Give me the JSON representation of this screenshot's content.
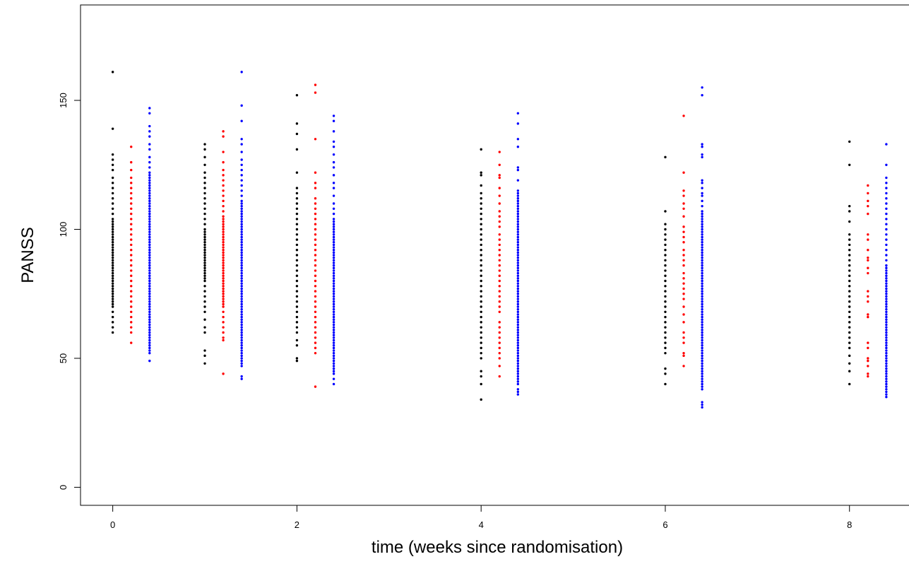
{
  "chart_data": {
    "type": "scatter",
    "title": "",
    "xlabel": "time (weeks since randomisation)",
    "ylabel": "PANSS",
    "xlim": [
      -0.35,
      8.7
    ],
    "ylim": [
      -7,
      187
    ],
    "x_ticks": [
      0,
      2,
      4,
      6,
      8
    ],
    "y_ticks": [
      0,
      50,
      100,
      150
    ],
    "grid": false,
    "legend": "none",
    "series": [
      {
        "color": "#000000",
        "points": [
          {
            "x": 0,
            "y": [
              161,
              139,
              129,
              127,
              125,
              123,
              120,
              118,
              116,
              114,
              112,
              110,
              108,
              106,
              104,
              103,
              102,
              101,
              100,
              99,
              98,
              97,
              96,
              95,
              94,
              93,
              92,
              91,
              90,
              89,
              88,
              87,
              86,
              85,
              84,
              83,
              82,
              81,
              80,
              79,
              78,
              77,
              76,
              75,
              74,
              73,
              72,
              71,
              70,
              68,
              66,
              64,
              62,
              60
            ]
          },
          {
            "x": 1,
            "y": [
              133,
              131,
              128,
              125,
              122,
              120,
              118,
              116,
              114,
              112,
              110,
              108,
              106,
              104,
              102,
              100,
              99,
              98,
              97,
              96,
              95,
              94,
              93,
              92,
              91,
              90,
              89,
              88,
              87,
              86,
              85,
              84,
              83,
              82,
              81,
              80,
              78,
              76,
              74,
              72,
              70,
              68,
              65,
              62,
              60,
              53,
              51,
              48
            ]
          },
          {
            "x": 2,
            "y": [
              152,
              141,
              137,
              131,
              122,
              116,
              114,
              112,
              110,
              108,
              106,
              104,
              102,
              100,
              98,
              96,
              94,
              92,
              90,
              88,
              86,
              84,
              82,
              80,
              78,
              76,
              74,
              72,
              70,
              68,
              66,
              64,
              62,
              60,
              57,
              55,
              50,
              49
            ]
          },
          {
            "x": 4,
            "y": [
              131,
              122,
              121,
              117,
              114,
              112,
              110,
              108,
              106,
              104,
              102,
              100,
              98,
              96,
              94,
              92,
              90,
              88,
              86,
              84,
              82,
              80,
              78,
              76,
              74,
              72,
              70,
              68,
              66,
              64,
              62,
              60,
              58,
              56,
              54,
              52,
              50,
              45,
              43,
              40,
              34
            ]
          },
          {
            "x": 6,
            "y": [
              128,
              107,
              102,
              100,
              98,
              96,
              94,
              92,
              90,
              88,
              86,
              84,
              82,
              80,
              78,
              76,
              74,
              72,
              70,
              68,
              66,
              64,
              62,
              60,
              58,
              56,
              54,
              52,
              46,
              44,
              40
            ]
          },
          {
            "x": 8,
            "y": [
              134,
              125,
              109,
              107,
              103,
              98,
              96,
              94,
              92,
              90,
              88,
              86,
              84,
              82,
              80,
              78,
              76,
              74,
              72,
              70,
              68,
              66,
              64,
              62,
              60,
              58,
              56,
              54,
              51,
              48,
              45,
              40
            ]
          }
        ]
      },
      {
        "color": "#ff0000",
        "points": [
          {
            "x": 0.2,
            "y": [
              132,
              126,
              123,
              120,
              118,
              116,
              114,
              112,
              110,
              108,
              106,
              104,
              102,
              100,
              98,
              96,
              94,
              92,
              90,
              88,
              86,
              84,
              82,
              80,
              78,
              76,
              74,
              72,
              70,
              68,
              66,
              64,
              62,
              60,
              56
            ]
          },
          {
            "x": 1.2,
            "y": [
              138,
              136,
              130,
              126,
              123,
              121,
              119,
              117,
              115,
              113,
              111,
              109,
              107,
              105,
              104,
              103,
              102,
              101,
              100,
              99,
              98,
              97,
              96,
              95,
              94,
              93,
              92,
              91,
              90,
              89,
              88,
              87,
              86,
              85,
              84,
              83,
              82,
              81,
              80,
              79,
              78,
              77,
              76,
              75,
              74,
              73,
              72,
              71,
              70,
              68,
              66,
              64,
              62,
              60,
              58,
              57,
              44
            ]
          },
          {
            "x": 2.2,
            "y": [
              156,
              153,
              135,
              122,
              118,
              116,
              112,
              110,
              108,
              106,
              104,
              102,
              100,
              98,
              96,
              94,
              92,
              90,
              88,
              86,
              84,
              82,
              80,
              78,
              76,
              74,
              72,
              70,
              68,
              66,
              64,
              62,
              60,
              58,
              56,
              54,
              52,
              39
            ]
          },
          {
            "x": 4.2,
            "y": [
              130,
              125,
              121,
              120,
              116,
              113,
              110,
              107,
              105,
              103,
              101,
              98,
              96,
              94,
              92,
              90,
              88,
              86,
              84,
              82,
              80,
              78,
              76,
              74,
              72,
              70,
              68,
              64,
              62,
              60,
              58,
              56,
              54,
              52,
              50,
              47,
              43
            ]
          },
          {
            "x": 6.2,
            "y": [
              144,
              122,
              115,
              113,
              110,
              108,
              105,
              101,
              99,
              97,
              95,
              92,
              90,
              88,
              86,
              83,
              81,
              79,
              77,
              75,
              73,
              70,
              67,
              64,
              60,
              58,
              56,
              52,
              51,
              47
            ]
          },
          {
            "x": 8.2,
            "y": [
              117,
              114,
              111,
              109,
              106,
              98,
              96,
              92,
              89,
              88,
              85,
              83,
              76,
              74,
              72,
              67,
              66,
              56,
              54,
              50,
              49,
              47,
              44,
              43
            ]
          }
        ]
      },
      {
        "color": "#0000ff",
        "points": [
          {
            "x": 0.4,
            "y": [
              147,
              145,
              140,
              138,
              136,
              133,
              131,
              128,
              126,
              124,
              122,
              121,
              120,
              119,
              118,
              117,
              116,
              115,
              114,
              113,
              112,
              111,
              110,
              109,
              108,
              107,
              106,
              105,
              104,
              103,
              102,
              101,
              100,
              99,
              98,
              97,
              96,
              95,
              94,
              93,
              92,
              91,
              90,
              89,
              88,
              87,
              86,
              85,
              84,
              83,
              82,
              81,
              80,
              79,
              78,
              77,
              76,
              75,
              74,
              73,
              72,
              71,
              70,
              69,
              68,
              67,
              66,
              65,
              64,
              63,
              62,
              61,
              60,
              59,
              58,
              57,
              56,
              55,
              54,
              53,
              52,
              49
            ]
          },
          {
            "x": 1.4,
            "y": [
              161,
              148,
              142,
              135,
              133,
              130,
              127,
              125,
              123,
              121,
              119,
              117,
              115,
              113,
              111,
              110,
              109,
              108,
              107,
              106,
              105,
              104,
              103,
              102,
              101,
              100,
              99,
              98,
              97,
              96,
              95,
              94,
              93,
              92,
              91,
              90,
              89,
              88,
              87,
              86,
              85,
              84,
              83,
              82,
              81,
              80,
              79,
              78,
              77,
              76,
              75,
              74,
              73,
              72,
              71,
              70,
              69,
              68,
              67,
              66,
              65,
              64,
              63,
              62,
              61,
              60,
              59,
              58,
              57,
              56,
              55,
              54,
              53,
              52,
              51,
              50,
              49,
              48,
              47,
              43,
              42
            ]
          },
          {
            "x": 2.4,
            "y": [
              144,
              142,
              138,
              134,
              132,
              129,
              126,
              124,
              121,
              118,
              116,
              113,
              110,
              108,
              106,
              104,
              103,
              102,
              101,
              100,
              99,
              98,
              97,
              96,
              95,
              94,
              93,
              92,
              91,
              90,
              89,
              88,
              87,
              86,
              85,
              84,
              83,
              82,
              81,
              80,
              79,
              78,
              77,
              76,
              75,
              74,
              73,
              72,
              71,
              70,
              69,
              68,
              67,
              66,
              65,
              64,
              63,
              62,
              61,
              60,
              59,
              58,
              57,
              56,
              55,
              54,
              53,
              52,
              51,
              50,
              49,
              48,
              47,
              46,
              45,
              44,
              42,
              40
            ]
          },
          {
            "x": 4.4,
            "y": [
              145,
              141,
              135,
              132,
              124,
              123,
              119,
              115,
              114,
              113,
              112,
              111,
              110,
              109,
              108,
              107,
              106,
              105,
              104,
              103,
              102,
              101,
              100,
              99,
              98,
              97,
              96,
              95,
              94,
              93,
              92,
              91,
              90,
              89,
              88,
              87,
              86,
              85,
              84,
              83,
              82,
              81,
              80,
              79,
              78,
              77,
              76,
              75,
              74,
              73,
              72,
              71,
              70,
              69,
              68,
              67,
              66,
              65,
              64,
              63,
              62,
              61,
              60,
              59,
              58,
              57,
              56,
              55,
              54,
              53,
              52,
              51,
              50,
              49,
              48,
              47,
              46,
              45,
              44,
              43,
              42,
              41,
              40,
              38,
              37,
              36
            ]
          },
          {
            "x": 6.4,
            "y": [
              155,
              152,
              133,
              132,
              129,
              128,
              119,
              118,
              116,
              114,
              113,
              111,
              109,
              107,
              106,
              105,
              104,
              103,
              102,
              101,
              100,
              99,
              98,
              97,
              96,
              95,
              94,
              93,
              92,
              91,
              90,
              89,
              88,
              87,
              86,
              85,
              84,
              83,
              82,
              81,
              80,
              79,
              78,
              77,
              76,
              75,
              74,
              73,
              72,
              71,
              70,
              69,
              68,
              67,
              66,
              65,
              64,
              63,
              62,
              61,
              60,
              59,
              58,
              57,
              56,
              55,
              54,
              53,
              52,
              51,
              50,
              49,
              48,
              47,
              46,
              45,
              44,
              43,
              42,
              41,
              40,
              39,
              38,
              33,
              32,
              31
            ]
          },
          {
            "x": 8.4,
            "y": [
              133,
              125,
              120,
              118,
              116,
              114,
              112,
              110,
              108,
              106,
              104,
              102,
              100,
              98,
              96,
              94,
              92,
              90,
              88,
              86,
              85,
              84,
              83,
              82,
              81,
              80,
              79,
              78,
              77,
              76,
              75,
              74,
              73,
              72,
              71,
              70,
              69,
              68,
              67,
              66,
              65,
              64,
              63,
              62,
              61,
              60,
              59,
              58,
              57,
              56,
              55,
              54,
              53,
              52,
              51,
              50,
              49,
              48,
              47,
              46,
              45,
              44,
              43,
              42,
              41,
              40,
              39,
              38,
              37,
              36,
              35
            ]
          }
        ]
      }
    ]
  }
}
